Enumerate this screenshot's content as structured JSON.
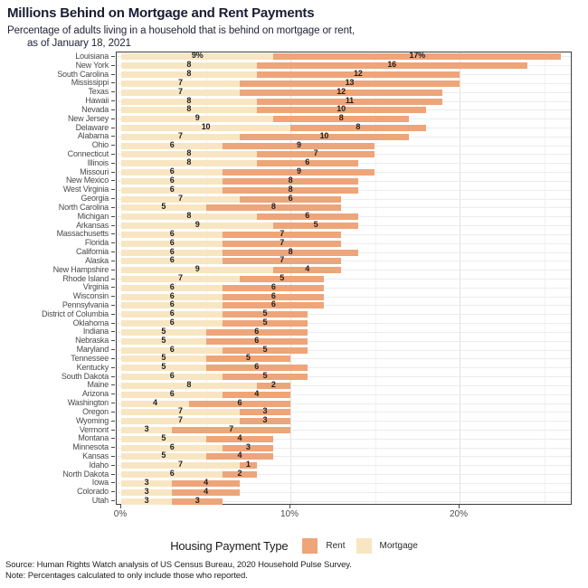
{
  "header": {
    "title": "Millions Behind on Mortgage and Rent Payments",
    "subtitle_line1": "Percentage of adults living in a household that is behind on mortgage or rent,",
    "subtitle_line2": "as of January 18, 2021"
  },
  "chart_data": {
    "type": "bar",
    "orientation": "horizontal",
    "stacked": true,
    "title": "Millions Behind on Mortgage and Rent Payments",
    "xlabel": "",
    "ylabel": "",
    "xlim": [
      0,
      27
    ],
    "grid": "on",
    "x_ticks": [
      {
        "value": 0,
        "label": "0%"
      },
      {
        "value": 10,
        "label": "10%"
      },
      {
        "value": 20,
        "label": "20%"
      }
    ],
    "minor_gridlines": [
      5,
      15,
      25
    ],
    "major_gridlines": [
      10,
      20
    ],
    "legend": {
      "position": "bottom",
      "title": "Housing Payment Type",
      "entries": [
        {
          "label": "Rent",
          "color": "#eda579"
        },
        {
          "label": "Mortgage",
          "color": "#f8e6c2"
        }
      ]
    },
    "colors": {
      "mortgage": "#f8e6c2",
      "rent": "#eda579"
    },
    "categories": [
      "Louisiana",
      "New York",
      "South Carolina",
      "Mississippi",
      "Texas",
      "Hawaii",
      "Nevada",
      "New Jersey",
      "Delaware",
      "Alabama",
      "Ohio",
      "Connecticut",
      "Illinois",
      "Missouri",
      "New Mexico",
      "West Virginia",
      "Georgia",
      "North Carolina",
      "Michigan",
      "Arkansas",
      "Massachusetts",
      "Florida",
      "California",
      "Alaska",
      "New Hampshire",
      "Rhode Island",
      "Virginia",
      "Wisconsin",
      "Pennsylvania",
      "District of Columbia",
      "Oklahoma",
      "Indiana",
      "Nebraska",
      "Maryland",
      "Tennessee",
      "Kentucky",
      "South Dakota",
      "Maine",
      "Arizona",
      "Washington",
      "Oregon",
      "Wyoming",
      "Vermont",
      "Montana",
      "Minnesota",
      "Kansas",
      "Idaho",
      "North Dakota",
      "Iowa",
      "Colorado",
      "Utah"
    ],
    "series": [
      {
        "name": "Mortgage",
        "values": [
          9,
          8,
          8,
          7,
          7,
          8,
          8,
          9,
          10,
          7,
          6,
          8,
          8,
          6,
          6,
          6,
          7,
          5,
          8,
          9,
          6,
          6,
          6,
          6,
          9,
          7,
          6,
          6,
          6,
          6,
          6,
          5,
          5,
          6,
          5,
          5,
          6,
          8,
          6,
          4,
          7,
          7,
          3,
          5,
          6,
          5,
          7,
          6,
          3,
          3,
          3
        ],
        "labels": [
          "9%",
          "8",
          "8",
          "7",
          "7",
          "8",
          "8",
          "9",
          "10",
          "7",
          "6",
          "8",
          "8",
          "6",
          "6",
          "6",
          "7",
          "5",
          "8",
          "9",
          "6",
          "6",
          "6",
          "6",
          "9",
          "7",
          "6",
          "6",
          "6",
          "6",
          "6",
          "5",
          "5",
          "6",
          "5",
          "5",
          "6",
          "8",
          "6",
          "4",
          "7",
          "7",
          "3",
          "5",
          "6",
          "5",
          "7",
          "6",
          "3",
          "3",
          "3"
        ]
      },
      {
        "name": "Rent",
        "values": [
          17,
          16,
          12,
          13,
          12,
          11,
          10,
          8,
          8,
          10,
          9,
          7,
          6,
          9,
          8,
          8,
          6,
          8,
          6,
          5,
          7,
          7,
          8,
          7,
          4,
          5,
          6,
          6,
          6,
          5,
          5,
          6,
          6,
          5,
          5,
          6,
          5,
          2,
          4,
          6,
          3,
          3,
          7,
          4,
          3,
          4,
          1,
          2,
          4,
          4,
          3
        ],
        "labels": [
          "17%",
          "16",
          "12",
          "13",
          "12",
          "11",
          "10",
          "8",
          "8",
          "10",
          "9",
          "7",
          "6",
          "9",
          "8",
          "8",
          "6",
          "8",
          "6",
          "5",
          "7",
          "7",
          "8",
          "7",
          "4",
          "5",
          "6",
          "6",
          "6",
          "5",
          "5",
          "6",
          "6",
          "5",
          "5",
          "6",
          "5",
          "2",
          "4",
          "6",
          "3",
          "3",
          "7",
          "4",
          "3",
          "4",
          "1",
          "2",
          "4",
          "4",
          "3"
        ]
      }
    ]
  },
  "footer": {
    "source": "Source: Human Rights Watch analysis of US Census Bureau, 2020 Household Pulse Survey.",
    "note": "Note: Percentages calculated to only include those who reported."
  }
}
